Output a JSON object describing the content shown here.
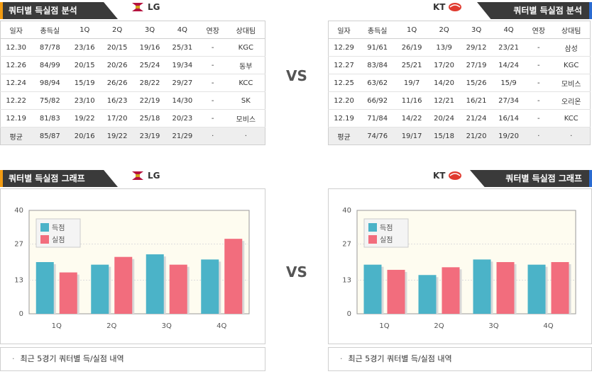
{
  "colors": {
    "score": "#4bb3c8",
    "allowed": "#f26d7d",
    "header_bg": "#3a3a3a",
    "left_accent": "#f39c12",
    "right_accent": "#2a6bd1",
    "plot_bg": "#fefcf0"
  },
  "vs_label": "VS",
  "left": {
    "team": "LG",
    "logo_icon": "lg-twins-logo-icon",
    "table_title": "쿼터별 득실점 분석",
    "graph_title": "쿼터별 득실점 그래프",
    "columns": [
      "일자",
      "총득실",
      "1Q",
      "2Q",
      "3Q",
      "4Q",
      "연장",
      "상대팀"
    ],
    "rows": [
      [
        "12.30",
        "87/78",
        "23/16",
        "20/15",
        "19/16",
        "25/31",
        "-",
        "KGC"
      ],
      [
        "12.26",
        "84/99",
        "20/15",
        "20/26",
        "25/24",
        "19/34",
        "-",
        "동부"
      ],
      [
        "12.24",
        "98/94",
        "15/19",
        "26/26",
        "28/22",
        "29/27",
        "-",
        "KCC"
      ],
      [
        "12.22",
        "75/82",
        "23/10",
        "16/23",
        "22/19",
        "14/30",
        "-",
        "SK"
      ],
      [
        "12.19",
        "81/83",
        "19/22",
        "17/20",
        "25/18",
        "20/23",
        "-",
        "모비스"
      ]
    ],
    "avg": [
      "평균",
      "85/87",
      "20/16",
      "19/22",
      "23/19",
      "21/29",
      "·",
      "·"
    ],
    "footer": "최근 5경기 쿼터별 득/실점 내역"
  },
  "right": {
    "team": "KT",
    "logo_icon": "kt-sonicboom-logo-icon",
    "table_title": "쿼터별 득실점 분석",
    "graph_title": "쿼터별 득실점 그래프",
    "columns": [
      "일자",
      "총득실",
      "1Q",
      "2Q",
      "3Q",
      "4Q",
      "연장",
      "상대팀"
    ],
    "rows": [
      [
        "12.29",
        "91/61",
        "26/19",
        "13/9",
        "29/12",
        "23/21",
        "-",
        "삼성"
      ],
      [
        "12.27",
        "83/84",
        "25/21",
        "17/20",
        "27/19",
        "14/24",
        "-",
        "KGC"
      ],
      [
        "12.25",
        "63/62",
        "19/7",
        "14/20",
        "15/26",
        "15/9",
        "-",
        "모비스"
      ],
      [
        "12.20",
        "66/92",
        "11/16",
        "12/21",
        "16/21",
        "27/34",
        "-",
        "오리온"
      ],
      [
        "12.19",
        "71/84",
        "14/22",
        "20/24",
        "21/24",
        "16/14",
        "-",
        "KCC"
      ]
    ],
    "avg": [
      "평균",
      "74/76",
      "19/17",
      "15/18",
      "21/20",
      "19/20",
      "·",
      "·"
    ],
    "footer": "최근 5경기 쿼터별 득/실점 내역"
  },
  "chart_data": [
    {
      "type": "bar",
      "categories": [
        "1Q",
        "2Q",
        "3Q",
        "4Q"
      ],
      "series": [
        {
          "name": "득점",
          "values": [
            20,
            19,
            23,
            21
          ]
        },
        {
          "name": "실점",
          "values": [
            16,
            22,
            19,
            29
          ]
        }
      ],
      "yticks": [
        0,
        13,
        27,
        40
      ],
      "ylim": [
        0,
        40
      ],
      "legend": "top-left"
    },
    {
      "type": "bar",
      "categories": [
        "1Q",
        "2Q",
        "3Q",
        "4Q"
      ],
      "series": [
        {
          "name": "득점",
          "values": [
            19,
            15,
            21,
            19
          ]
        },
        {
          "name": "실점",
          "values": [
            17,
            18,
            20,
            20
          ]
        }
      ],
      "yticks": [
        0,
        13,
        27,
        40
      ],
      "ylim": [
        0,
        40
      ],
      "legend": "top-left"
    }
  ]
}
